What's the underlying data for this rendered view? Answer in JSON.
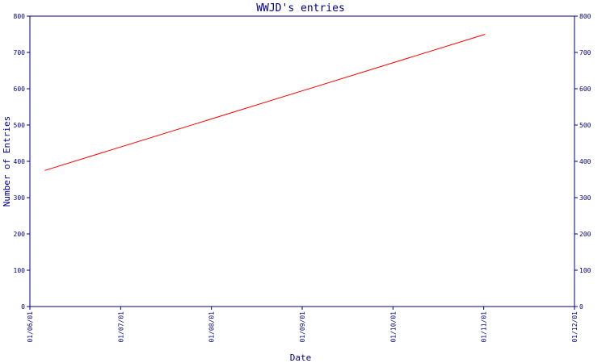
{
  "chart_data": {
    "type": "line",
    "title": "WWJD's entries",
    "xlabel": "Date",
    "ylabel": "Number of Entries",
    "x_ticks": [
      "01/06/01",
      "01/07/01",
      "01/08/01",
      "01/09/01",
      "01/10/01",
      "01/11/01",
      "01/12/01"
    ],
    "y_ticks": [
      "0",
      "100",
      "200",
      "300",
      "400",
      "500",
      "600",
      "700",
      "800"
    ],
    "ylim": [
      0,
      800
    ],
    "xlim": [
      "2001-06-01",
      "2001-12-01"
    ],
    "grid": false,
    "right_axis_mirrored": true,
    "series": [
      {
        "color": "#ff0000",
        "points": [
          {
            "x": "2001-06-06",
            "y": 375
          },
          {
            "x": "2001-11-01",
            "y": 750
          }
        ]
      }
    ]
  }
}
